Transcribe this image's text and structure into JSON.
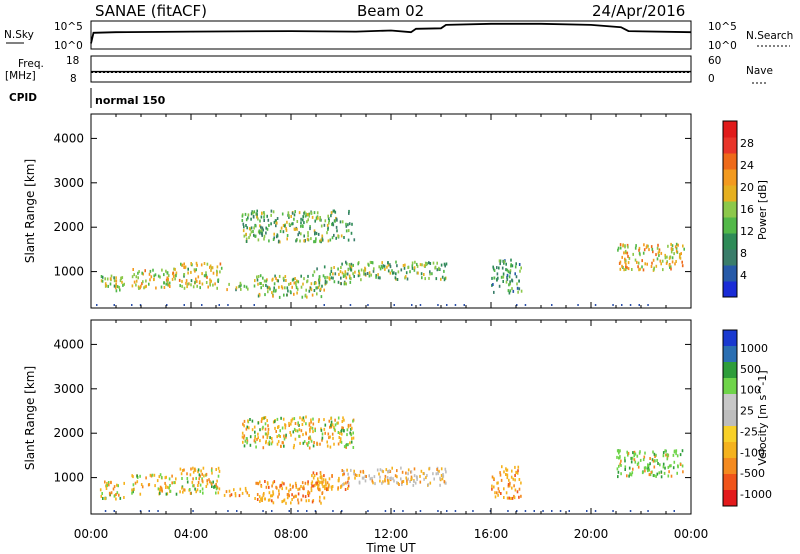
{
  "header": {
    "station": "SANAE (fitACF)",
    "beam": "Beam 02",
    "date": "24/Apr/2016"
  },
  "strip_labels": {
    "nsky": "N.Sky",
    "nsky_top": "10^5",
    "nsky_bottom": "10^0",
    "nsearch": "N.Search",
    "nsearch_top": "10^5",
    "nsearch_bottom": "10^0",
    "freq": "Freq.",
    "freq_unit": "[MHz]",
    "freq_top": "18",
    "freq_bottom": "8",
    "nave": "Nave",
    "nave_top": "60",
    "nave_bottom": "0",
    "cpid": "CPID",
    "cpid_value": "normal 150"
  },
  "axes": {
    "ylabel": "Slant Range [km]",
    "xlabel": "Time UT",
    "yticks": [
      "1000",
      "2000",
      "3000",
      "4000"
    ],
    "xticks": [
      "00:00",
      "04:00",
      "08:00",
      "12:00",
      "16:00",
      "20:00",
      "00:00"
    ]
  },
  "colors": {
    "power": [
      "#1a2cd6",
      "#275aa8",
      "#3a7d6a",
      "#2e8b57",
      "#52b848",
      "#8cc84a",
      "#e6b020",
      "#f39a1f",
      "#ee6a1a",
      "#e8352a",
      "#e11b1b"
    ],
    "velocity": [
      "#e31a1c",
      "#f0541a",
      "#f48a1f",
      "#f5b21d",
      "#f8d028",
      "#bdbdbd",
      "#c8c8c8",
      "#6fd44a",
      "#2e9d3a",
      "#2b6fb2",
      "#1a3ad0"
    ]
  },
  "chart_data": [
    {
      "type": "line",
      "name": "N.Sky / N.Search noise",
      "x": [
        0.0,
        0.1,
        1,
        4,
        8,
        10.6,
        12,
        12.8,
        13.0,
        14.0,
        14.2,
        16,
        18,
        20,
        21.2,
        21.5,
        24
      ],
      "y": [
        1.0,
        2.9,
        3.0,
        3.1,
        3.2,
        3.1,
        3.3,
        3.0,
        3.6,
        3.7,
        4.3,
        4.5,
        4.5,
        4.3,
        3.9,
        3.2,
        3.0
      ],
      "xlim": [
        0,
        24
      ],
      "ylim": [
        0,
        5
      ],
      "yscale": "log10"
    },
    {
      "type": "line",
      "name": "Frequency / Nave",
      "x": [
        0,
        24
      ],
      "freq_mhz": [
        12.0,
        12.0
      ],
      "nave": [
        22,
        22
      ],
      "ylim_freq": [
        8,
        18
      ],
      "ylim_nave": [
        0,
        60
      ]
    },
    {
      "type": "scatter",
      "title": "Power [dB]",
      "x_hours_range": [
        0,
        24
      ],
      "ylim_km": [
        180,
        4550
      ],
      "xlabel": "Time UT",
      "ylabel": "Slant Range [km]",
      "colorbar": {
        "label": "Power [dB]",
        "range": [
          0,
          32
        ],
        "ticks": [
          4,
          8,
          12,
          16,
          20,
          24,
          28
        ]
      },
      "clusters": [
        {
          "t0": 0.3,
          "t1": 1.3,
          "r0": 550,
          "r1": 950,
          "level": 0.5
        },
        {
          "t0": 1.6,
          "t1": 3.4,
          "r0": 650,
          "r1": 1100,
          "level": 0.55
        },
        {
          "t0": 3.5,
          "t1": 5.2,
          "r0": 650,
          "r1": 1250,
          "level": 0.55
        },
        {
          "t0": 5.3,
          "t1": 6.3,
          "r0": 620,
          "r1": 820,
          "level": 0.45
        },
        {
          "t0": 6.5,
          "t1": 9.5,
          "r0": 450,
          "r1": 950,
          "level": 0.5
        },
        {
          "t0": 8.8,
          "t1": 10.4,
          "r0": 750,
          "r1": 1150,
          "level": 0.45
        },
        {
          "t0": 10.0,
          "t1": 14.2,
          "r0": 850,
          "r1": 1250,
          "level": 0.4
        },
        {
          "t0": 16.0,
          "t1": 17.2,
          "r0": 550,
          "r1": 1300,
          "level": 0.3
        },
        {
          "t0": 21.0,
          "t1": 23.7,
          "r0": 1050,
          "r1": 1650,
          "level": 0.6
        },
        {
          "t0": 6.0,
          "t1": 10.5,
          "r0": 1700,
          "r1": 2400,
          "level": 0.4
        }
      ]
    },
    {
      "type": "scatter",
      "title": "Velocity [m s^-1]",
      "x_hours_range": [
        0,
        24
      ],
      "ylim_km": [
        180,
        4550
      ],
      "xlabel": "Time UT",
      "ylabel": "Slant Range [km]",
      "colorbar": {
        "label": "Velocity [m s^-1]",
        "ticks": [
          "1000",
          "500",
          "100",
          "25",
          "-25",
          "-100",
          "-500",
          "-1000"
        ]
      },
      "clusters": [
        {
          "t0": 0.3,
          "t1": 1.3,
          "r0": 550,
          "r1": 950,
          "mix": "orange-green"
        },
        {
          "t0": 1.6,
          "t1": 3.4,
          "r0": 650,
          "r1": 1100,
          "mix": "orange-green"
        },
        {
          "t0": 3.5,
          "t1": 5.2,
          "r0": 650,
          "r1": 1250,
          "mix": "orange-green"
        },
        {
          "t0": 5.3,
          "t1": 6.3,
          "r0": 620,
          "r1": 820,
          "mix": "orange"
        },
        {
          "t0": 6.5,
          "t1": 9.5,
          "r0": 450,
          "r1": 950,
          "mix": "orange"
        },
        {
          "t0": 8.8,
          "t1": 10.4,
          "r0": 750,
          "r1": 1150,
          "mix": "orange"
        },
        {
          "t0": 10.0,
          "t1": 14.2,
          "r0": 850,
          "r1": 1250,
          "mix": "gray-orange"
        },
        {
          "t0": 16.0,
          "t1": 17.2,
          "r0": 550,
          "r1": 1300,
          "mix": "orange"
        },
        {
          "t0": 21.0,
          "t1": 23.7,
          "r0": 1050,
          "r1": 1650,
          "mix": "green"
        },
        {
          "t0": 6.0,
          "t1": 10.5,
          "r0": 1700,
          "r1": 2400,
          "mix": "orange-green"
        }
      ]
    }
  ]
}
